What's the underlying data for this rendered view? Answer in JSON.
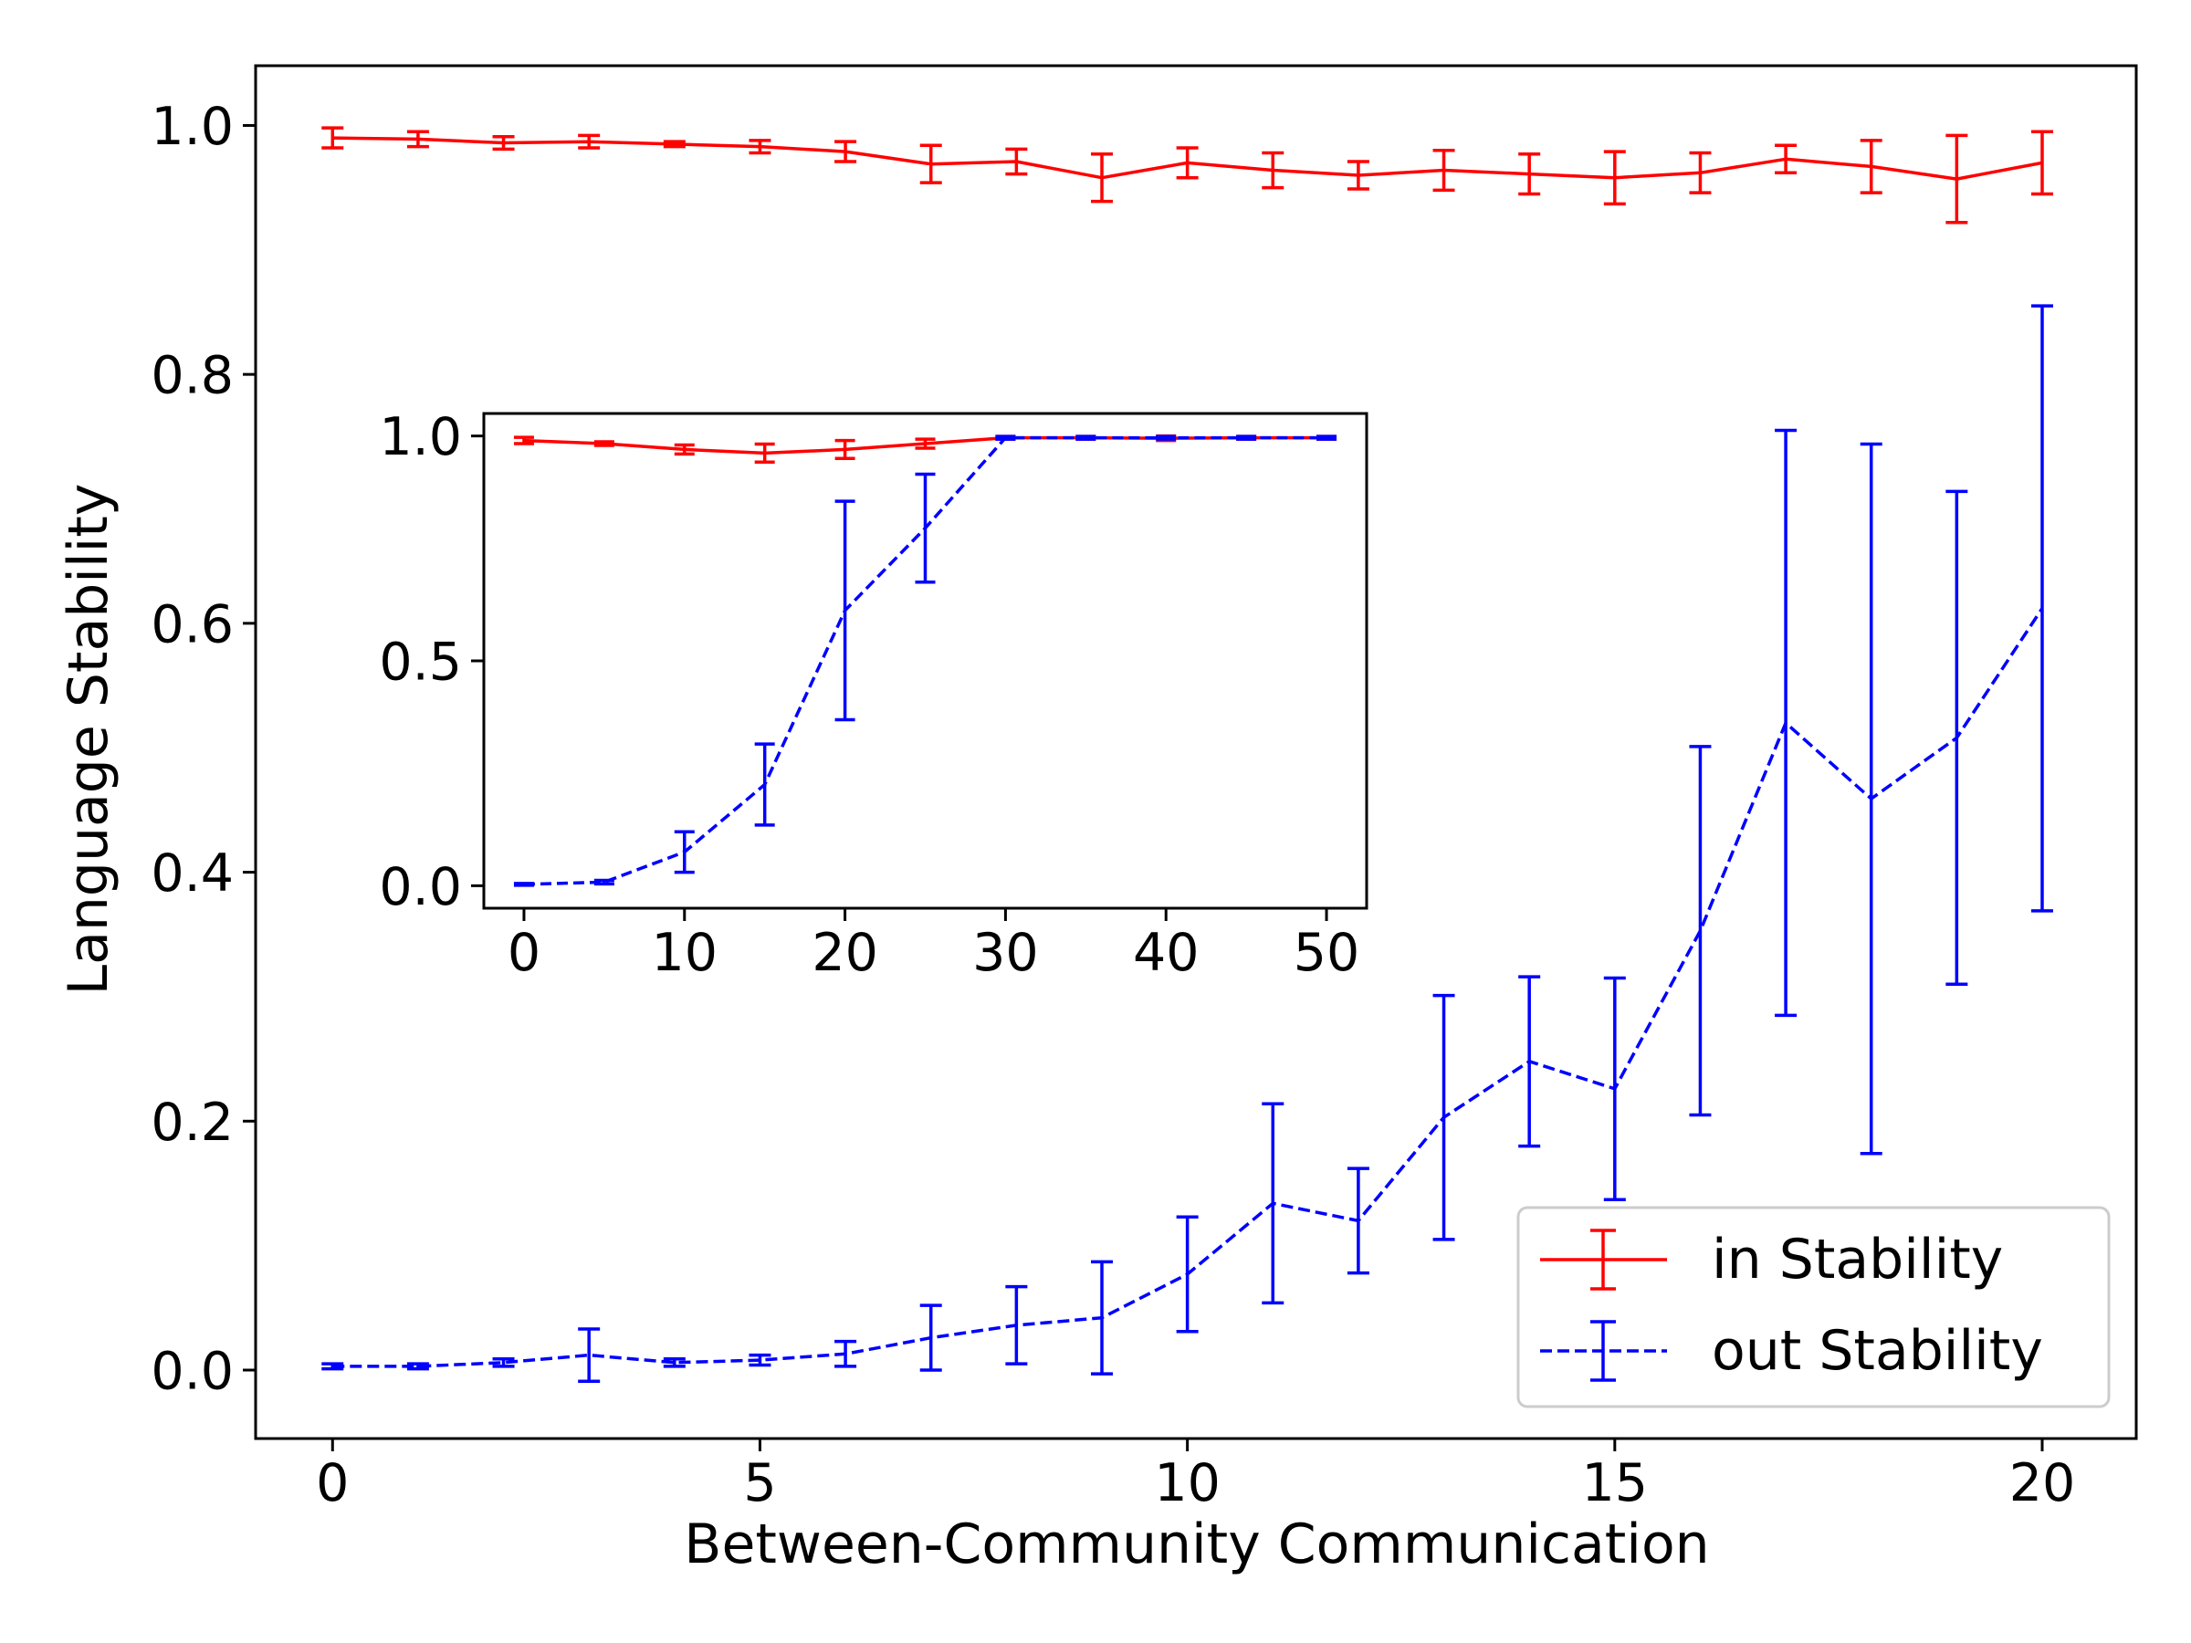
{
  "chart_data": [
    {
      "type": "line",
      "title": "",
      "xlabel": "Between-Community Communication",
      "ylabel": "Language Stability",
      "xlim": [
        -0.9,
        21.1
      ],
      "ylim": [
        -0.055,
        1.048
      ],
      "xticks": [
        0,
        5,
        10,
        15,
        20
      ],
      "xtick_labels": [
        "0",
        "5",
        "10",
        "15",
        "20"
      ],
      "yticks": [
        0.0,
        0.2,
        0.4,
        0.6,
        0.8,
        1.0
      ],
      "ytick_labels": [
        "0.0",
        "0.2",
        "0.4",
        "0.6",
        "0.8",
        "1.0"
      ],
      "grid": false,
      "legend_position": "bottom-right",
      "x": [
        0,
        1,
        2,
        3,
        4,
        5,
        6,
        7,
        8,
        9,
        10,
        11,
        12,
        13,
        14,
        15,
        16,
        17,
        18,
        19,
        20
      ],
      "series": [
        {
          "name": "in Stability",
          "color": "#ff0000",
          "style": "solid",
          "values": [
            0.99,
            0.989,
            0.986,
            0.987,
            0.985,
            0.983,
            0.979,
            0.969,
            0.971,
            0.958,
            0.97,
            0.964,
            0.96,
            0.964,
            0.961,
            0.958,
            0.962,
            0.973,
            0.967,
            0.957,
            0.97
          ],
          "errors": [
            0.008,
            0.006,
            0.005,
            0.005,
            0.002,
            0.005,
            0.008,
            0.015,
            0.01,
            0.019,
            0.012,
            0.014,
            0.011,
            0.016,
            0.016,
            0.021,
            0.016,
            0.011,
            0.021,
            0.035,
            0.025
          ]
        },
        {
          "name": "out Stability",
          "color": "#0000ff",
          "style": "dashed",
          "values": [
            0.003,
            0.003,
            0.006,
            0.012,
            0.006,
            0.008,
            0.013,
            0.026,
            0.036,
            0.042,
            0.077,
            0.134,
            0.12,
            0.203,
            0.248,
            0.226,
            0.353,
            0.52,
            0.459,
            0.508,
            0.612
          ],
          "errors": [
            0.002,
            0.002,
            0.003,
            0.021,
            0.003,
            0.004,
            0.01,
            0.026,
            0.031,
            0.045,
            0.046,
            0.08,
            0.042,
            0.098,
            0.068,
            0.089,
            0.148,
            0.235,
            0.285,
            0.198,
            0.243
          ]
        }
      ]
    },
    {
      "type": "line",
      "title": "",
      "xlabel": "",
      "ylabel": "",
      "xlim": [
        -2.5,
        52.5
      ],
      "ylim": [
        -0.05,
        1.05
      ],
      "xticks": [
        0,
        10,
        20,
        30,
        40,
        50
      ],
      "xtick_labels": [
        "0",
        "10",
        "20",
        "30",
        "40",
        "50"
      ],
      "yticks": [
        0.0,
        0.5,
        1.0
      ],
      "ytick_labels": [
        "0.0",
        "0.5",
        "1.0"
      ],
      "grid": false,
      "x": [
        0,
        5,
        10,
        15,
        20,
        25,
        30,
        35,
        40,
        45,
        50
      ],
      "series": [
        {
          "name": "in Stability",
          "color": "#ff0000",
          "style": "solid",
          "values": [
            0.99,
            0.983,
            0.97,
            0.962,
            0.97,
            0.983,
            0.996,
            0.996,
            0.995,
            0.996,
            0.996
          ],
          "errors": [
            0.007,
            0.004,
            0.01,
            0.02,
            0.02,
            0.01,
            0.003,
            0.003,
            0.005,
            0.003,
            0.003
          ]
        },
        {
          "name": "out Stability",
          "color": "#0000ff",
          "style": "dashed",
          "values": [
            0.003,
            0.008,
            0.075,
            0.225,
            0.612,
            0.795,
            0.996,
            0.996,
            0.996,
            0.996,
            0.996
          ],
          "errors": [
            0.002,
            0.004,
            0.045,
            0.09,
            0.243,
            0.12,
            0.003,
            0.003,
            0.003,
            0.003,
            0.003
          ]
        }
      ]
    }
  ]
}
